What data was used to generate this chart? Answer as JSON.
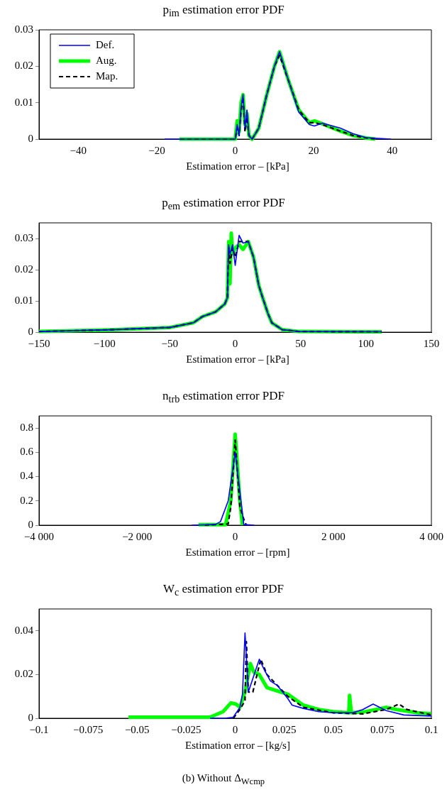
{
  "chart_data": [
    {
      "type": "line",
      "title": "p$_{im}$ estimation error PDF",
      "xlabel": "Estimation error – [kPa]",
      "xlim": [
        -50,
        50
      ],
      "xticks": [
        -40,
        -20,
        0,
        20,
        40
      ],
      "ylim": [
        0,
        0.03
      ],
      "yticks": [
        0,
        0.01,
        0.02,
        0.03
      ],
      "grid": false,
      "legend": "top left",
      "marker": "none",
      "series": [
        {
          "name": "Def.",
          "color": "#0000ff",
          "line_style": "solid",
          "x": [
            -18,
            0,
            0.5,
            1,
            1.5,
            2,
            2.5,
            3,
            3.5,
            4.3,
            6,
            8,
            10,
            11.3,
            13.6,
            16.2,
            18.9,
            20.2,
            22.2,
            26.8,
            30,
            33.4,
            39.7
          ],
          "values": [
            0,
            0,
            0.004,
            0.001,
            0.009,
            0.0122,
            0.003,
            0.008,
            0.001,
            0,
            0.003,
            0.012,
            0.02,
            0.024,
            0.016,
            0.0074,
            0.004,
            0.0036,
            0.0044,
            0.003,
            0.0015,
            0.0004,
            0
          ]
        },
        {
          "name": "Aug.",
          "color": "#00ff00",
          "line_style": "solid",
          "x": [
            -14.2,
            0,
            0.5,
            1,
            1.5,
            2,
            2.5,
            3,
            3.5,
            4.3,
            6,
            8,
            10,
            11.3,
            13.6,
            16.2,
            18.9,
            20.2,
            22.2,
            26.8,
            30,
            33.4,
            35.7
          ],
          "values": [
            0,
            0,
            0.005,
            0.002,
            0.01,
            0.0122,
            0.004,
            0.007,
            0.001,
            0,
            0.003,
            0.012,
            0.02,
            0.024,
            0.016,
            0.008,
            0.0045,
            0.005,
            0.0042,
            0.0022,
            0.001,
            0.0003,
            0
          ]
        },
        {
          "name": "Map.",
          "color": "#000000",
          "line_style": "dashed",
          "x": [
            -14,
            0,
            0.5,
            1,
            1.5,
            2,
            2.5,
            3,
            3.5,
            4.3,
            6,
            8,
            10,
            11.3,
            13.6,
            16.2,
            18.9,
            20.2,
            22.2,
            26.8,
            30,
            33.4,
            36
          ],
          "values": [
            0,
            0,
            0.003,
            0.001,
            0.008,
            0.0115,
            0.002,
            0.006,
            0.001,
            0,
            0.003,
            0.012,
            0.02,
            0.023,
            0.016,
            0.008,
            0.0045,
            0.0045,
            0.004,
            0.0022,
            0.001,
            0.0003,
            0
          ]
        }
      ]
    },
    {
      "type": "line",
      "title": "p$_{em}$ estimation error PDF",
      "xlabel": "Estimation error – [kPa]",
      "xlim": [
        -150,
        150
      ],
      "xticks": [
        -150,
        -100,
        -50,
        0,
        50,
        100,
        150
      ],
      "ylim": [
        0,
        0.035
      ],
      "yticks": [
        0,
        0.01,
        0.02,
        0.03
      ],
      "grid": false,
      "marker": "none",
      "series": [
        {
          "color": "#0000ff",
          "line_style": "solid",
          "x": [
            -150,
            -100,
            -50,
            -32,
            -25,
            -15,
            -8,
            -6,
            -5,
            -4,
            -2,
            0,
            3,
            6,
            10,
            14,
            18,
            21,
            25,
            28,
            36,
            49,
            112
          ],
          "values": [
            0.0002,
            0.0007,
            0.0015,
            0.003,
            0.005,
            0.0065,
            0.009,
            0.011,
            0.028,
            0.025,
            0.028,
            0.0214,
            0.031,
            0.0285,
            0.029,
            0.024,
            0.015,
            0.011,
            0.006,
            0.003,
            0.0008,
            0.0002,
            0.0001
          ]
        },
        {
          "color": "#00ff00",
          "line_style": "solid",
          "x": [
            -150,
            -100,
            -50,
            -32,
            -25,
            -15,
            -8,
            -6,
            -5,
            -4,
            -3,
            -2,
            0,
            3,
            6,
            10,
            14,
            18,
            21,
            25,
            28,
            36,
            49,
            112
          ],
          "values": [
            0.0002,
            0.0007,
            0.0015,
            0.003,
            0.005,
            0.0065,
            0.009,
            0.011,
            0.029,
            0.0155,
            0.0317,
            0.025,
            0.027,
            0.028,
            0.0265,
            0.029,
            0.024,
            0.015,
            0.011,
            0.006,
            0.003,
            0.0008,
            0.0002,
            0.0001
          ]
        },
        {
          "color": "#000000",
          "line_style": "dashed",
          "x": [
            -150,
            -100,
            -50,
            -32,
            -25,
            -15,
            -8,
            -6,
            -5,
            -4,
            -2,
            0,
            3,
            6,
            10,
            14,
            18,
            21,
            25,
            28,
            36,
            49,
            112
          ],
          "values": [
            0.0002,
            0.0007,
            0.0015,
            0.003,
            0.005,
            0.0065,
            0.009,
            0.011,
            0.027,
            0.022,
            0.027,
            0.024,
            0.029,
            0.029,
            0.029,
            0.024,
            0.015,
            0.011,
            0.006,
            0.003,
            0.0008,
            0.0002,
            0.0001
          ]
        }
      ]
    },
    {
      "type": "line",
      "title": "n$_{trb}$ estimation error PDF",
      "xlabel": "Estimation error – [rpm]",
      "xlim": [
        -4000,
        4000
      ],
      "xticks": [
        {
          "value": -4000,
          "label": "−4 000"
        },
        {
          "value": -2000,
          "label": "−2 000"
        },
        0,
        {
          "value": 2000,
          "label": "2 000"
        },
        {
          "value": 4000,
          "label": "4 000"
        }
      ],
      "ylim": [
        0,
        0.9
      ],
      "yticks": [
        0,
        0.2,
        0.4,
        0.6,
        0.8
      ],
      "grid": false,
      "marker": "none",
      "series": [
        {
          "color": "#0000ff",
          "line_style": "solid",
          "x": [
            -884,
            -407,
            -300,
            -143,
            0,
            175,
            386
          ],
          "values": [
            0,
            0.005,
            0.03,
            0.2,
            0.6,
            0.005,
            0
          ]
        },
        {
          "color": "#00ff00",
          "line_style": "solid",
          "x": [
            -750,
            -196,
            -90,
            0,
            95,
            148
          ],
          "values": [
            0.005,
            0.005,
            0.2,
            0.75,
            0.2,
            0
          ]
        },
        {
          "color": "#000000",
          "line_style": "dashed",
          "x": [
            -620,
            -143,
            -90,
            0,
            95,
            175,
            227
          ],
          "values": [
            0,
            0.01,
            0.15,
            0.7,
            0.15,
            0.05,
            0
          ]
        }
      ]
    },
    {
      "type": "line",
      "title": "W$_{c}$ estimation error PDF",
      "xlabel": "Estimation error – [kg/s]",
      "xlim": [
        -0.1,
        0.1
      ],
      "xticks": [
        -0.1,
        -0.075,
        -0.05,
        -0.025,
        0,
        0.025,
        0.05,
        0.075,
        0.1
      ],
      "ylim": [
        0,
        0.05
      ],
      "yticks": [
        0,
        0.02,
        0.04
      ],
      "grid": false,
      "marker": "none",
      "annotations": [
        "(b) Without Δ$_{Wcmp}$"
      ],
      "series": [
        {
          "color": "#0000ff",
          "line_style": "solid",
          "x": [
            -0.0128,
            -0.005,
            -0.001,
            0.0024,
            0.0037,
            0.005,
            0.0067,
            0.0123,
            0.0149,
            0.018,
            0.0215,
            0.0268,
            0.029,
            0.0347,
            0.0426,
            0.05,
            0.0599,
            0.065,
            0.0703,
            0.077,
            0.086,
            0.1
          ],
          "values": [
            0,
            0,
            0.0005,
            0.005,
            0.011,
            0.039,
            0.012,
            0.027,
            0.022,
            0.017,
            0.015,
            0.009,
            0.006,
            0.0045,
            0.003,
            0.0025,
            0.0025,
            0.004,
            0.0065,
            0.0035,
            0.0015,
            0.001
          ]
        },
        {
          "color": "#00ff00",
          "line_style": "solid",
          "x": [
            -0.0544,
            -0.0128,
            -0.0062,
            -0.0022,
            0.0004,
            0.0024,
            0.005,
            0.0077,
            0.0096,
            0.0123,
            0.0162,
            0.0215,
            0.0268,
            0.0347,
            0.0426,
            0.05,
            0.0579,
            0.0583,
            0.0592,
            0.0664,
            0.077,
            0.0823,
            0.0928,
            0.1
          ],
          "values": [
            0.0005,
            0.0005,
            0.003,
            0.007,
            0.0065,
            0.005,
            0.012,
            0.025,
            0.021,
            0.02,
            0.014,
            0.0125,
            0.011,
            0.006,
            0.004,
            0.003,
            0.0025,
            0.0105,
            0.0025,
            0.003,
            0.005,
            0.004,
            0.0025,
            0.002
          ]
        },
        {
          "color": "#000000",
          "line_style": "dashed",
          "x": [
            -0.001,
            0.0024,
            0.005,
            0.0057,
            0.0067,
            0.009,
            0.013,
            0.0162,
            0.0215,
            0.0268,
            0.0347,
            0.05,
            0.065,
            0.077,
            0.0835,
            0.0875,
            0.1
          ],
          "values": [
            0,
            0.004,
            0.008,
            0.035,
            0.012,
            0.012,
            0.027,
            0.02,
            0.015,
            0.01,
            0.005,
            0.0025,
            0.002,
            0.004,
            0.0065,
            0.004,
            0.0015
          ]
        }
      ]
    }
  ]
}
